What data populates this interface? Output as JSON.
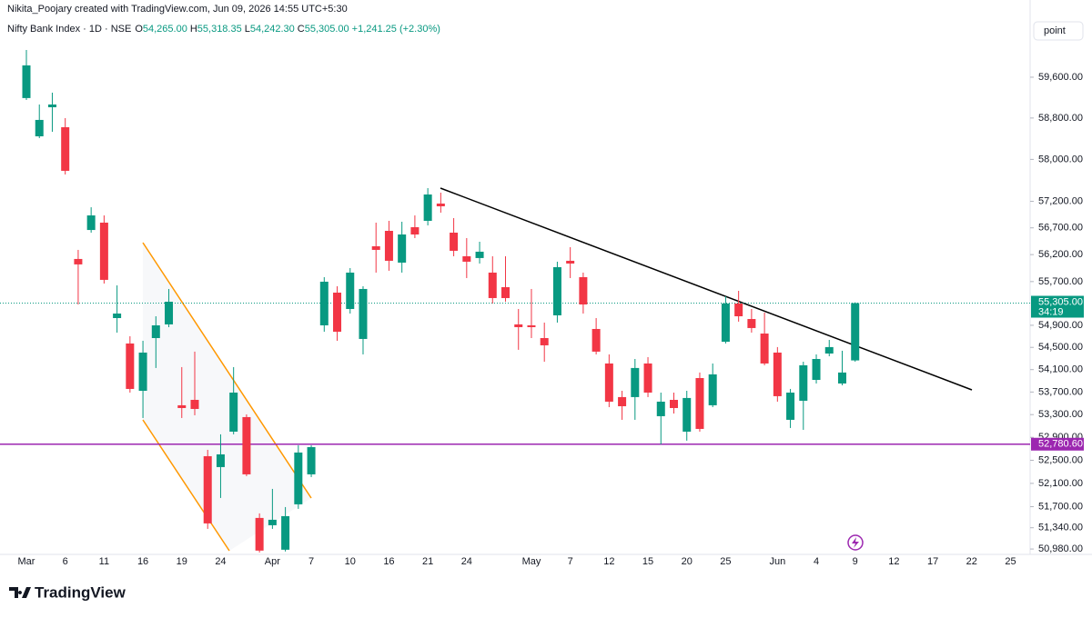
{
  "chart_data": {
    "type": "candlestick",
    "credit": "Nikita_Poojary created with TradingView.com, Jun 09, 2026 14:55 UTC+5:30",
    "symbol": "Nifty Bank Index · 1D · NSE",
    "legend_fields": [
      {
        "key": "O",
        "value": "54,265.00"
      },
      {
        "key": "H",
        "value": "55,318.35"
      },
      {
        "key": "L",
        "value": "54,242.30"
      },
      {
        "key": "C",
        "value": "55,305.00"
      }
    ],
    "change": "+1,241.25 (+2.30%)",
    "scale_button": "point",
    "logo": "TradingView",
    "up_color": "#089981",
    "down_color": "#f23645",
    "log_scale": true,
    "grid": false,
    "categories": [
      "Mar",
      null,
      null,
      "6",
      null,
      null,
      "11",
      null,
      null,
      "16",
      null,
      null,
      "19",
      null,
      null,
      "24",
      null,
      null,
      null,
      "Apr",
      null,
      null,
      "7",
      null,
      null,
      "10",
      null,
      null,
      "16",
      null,
      null,
      "21",
      null,
      null,
      "24",
      null,
      null,
      null,
      null,
      "May",
      null,
      null,
      "7",
      null,
      null,
      "12",
      null,
      null,
      "15",
      null,
      null,
      "20",
      null,
      null,
      "25",
      null,
      null,
      null,
      "Jun",
      null,
      null,
      "4",
      null,
      null,
      "9",
      null,
      null,
      "12",
      null,
      null,
      "17",
      null,
      null,
      "22",
      null,
      null,
      "25"
    ],
    "open": [
      59190,
      58445,
      59010,
      58621,
      56119,
      56660,
      56798,
      55031,
      54570,
      53722,
      54668,
      54916,
      53465,
      53561,
      52571,
      52382,
      53000,
      53256,
      51507,
      51383,
      50968,
      51740,
      52256,
      54899,
      55497,
      55197,
      54652,
      56355,
      56644,
      56051,
      56712,
      56832,
      57158,
      56610,
      56169,
      56136,
      55866,
      55597,
      54916,
      54899,
      54668,
      55081,
      56085,
      55782,
      54833,
      54210,
      53610,
      53610,
      54210,
      53272,
      53561,
      53000,
      53949,
      53465,
      54602,
      55297,
      55014,
      54750,
      54406,
      53208,
      53545,
      53916,
      54389,
      53852,
      54265,
      null,
      null,
      null,
      null,
      null,
      null,
      null,
      null,
      null,
      null,
      null,
      null
    ],
    "high": [
      60140,
      59064,
      59296,
      58798,
      56288,
      57088,
      56934,
      55630,
      54701,
      54619,
      55064,
      55564,
      54145,
      54423,
      52682,
      52953,
      54145,
      53304,
      51585,
      52005,
      51693,
      52762,
      52762,
      55782,
      55614,
      55950,
      55614,
      56798,
      56832,
      56815,
      56934,
      57451,
      57365,
      56883,
      56508,
      56440,
      56169,
      56169,
      55197,
      55564,
      54949,
      56068,
      56338,
      55866,
      55031,
      54373,
      53722,
      54291,
      54324,
      53690,
      53690,
      53722,
      54048,
      54210,
      55430,
      55530,
      55197,
      55131,
      54505,
      53755,
      54242,
      54373,
      54635,
      54439,
      55318.35,
      null,
      null,
      null,
      null,
      null,
      null,
      null,
      null,
      null,
      null,
      null,
      null
    ],
    "low": [
      59153,
      58410,
      58533,
      57711,
      55280,
      56610,
      55664,
      54767,
      53690,
      53240,
      54129,
      54866,
      53240,
      53288,
      51321,
      51849,
      52953,
      52225,
      50922,
      51321,
      50938,
      51662,
      52209,
      54783,
      54619,
      55114,
      54373,
      55866,
      55900,
      55866,
      56508,
      56746,
      56986,
      56169,
      55765,
      56034,
      55297,
      55330,
      54456,
      54668,
      54242,
      54949,
      55765,
      55114,
      54373,
      53432,
      53208,
      53208,
      53610,
      52778,
      53320,
      52842,
      53000,
      53432,
      54570,
      54966,
      54767,
      54178,
      53529,
      53064,
      53032,
      53852,
      54340,
      53820,
      54242.3,
      null,
      null,
      null,
      null,
      null,
      null,
      null,
      null,
      null,
      null,
      null,
      null
    ],
    "close": [
      59834,
      58763,
      59064,
      57781,
      56018,
      56934,
      55732,
      55114,
      53755,
      54406,
      54899,
      55330,
      53416,
      53400,
      51414,
      52603,
      53690,
      52256,
      50953,
      51476,
      51538,
      52635,
      52730,
      55698,
      54783,
      55866,
      55564,
      56288,
      56085,
      56576,
      56576,
      57330,
      57106,
      56271,
      56068,
      56254,
      55397,
      55397,
      54866,
      54866,
      54537,
      55967,
      56034,
      55280,
      54423,
      53529,
      53448,
      54129,
      53690,
      53529,
      53416,
      53594,
      53048,
      54015,
      55297,
      55064,
      54850,
      54210,
      53626,
      53690,
      54178,
      54291,
      54505,
      54048,
      55305,
      null,
      null,
      null,
      null,
      null,
      null,
      null,
      null,
      null,
      null,
      null,
      null
    ],
    "ylim": [
      50920,
      60740
    ],
    "yticks": [
      {
        "value": 59600,
        "label": "59,600.00"
      },
      {
        "value": 58800,
        "label": "58,800.00"
      },
      {
        "value": 58000,
        "label": "58,000.00"
      },
      {
        "value": 57200,
        "label": "57,200.00"
      },
      {
        "value": 56700,
        "label": "56,700.00"
      },
      {
        "value": 56200,
        "label": "56,200.00"
      },
      {
        "value": 55700,
        "label": "55,700.00"
      },
      {
        "value": 54900,
        "label": "54,900.00"
      },
      {
        "value": 54500,
        "label": "54,500.00"
      },
      {
        "value": 54100,
        "label": "54,100.00"
      },
      {
        "value": 53700,
        "label": "53,700.00"
      },
      {
        "value": 53300,
        "label": "53,300.00"
      },
      {
        "value": 52900,
        "label": "52,900.00"
      },
      {
        "value": 52500,
        "label": "52,500.00"
      },
      {
        "value": 52100,
        "label": "52,100.00"
      },
      {
        "value": 51700,
        "label": "51,700.00"
      },
      {
        "value": 51340,
        "label": "51,340.00"
      },
      {
        "value": 50980,
        "label": "50,980.00"
      }
    ],
    "last_price": {
      "value": 55305,
      "label": "55,305.00",
      "countdown": "34:19"
    },
    "level": {
      "value": 52780.6,
      "label": "52,780.60",
      "color": "#9c27b0"
    }
  }
}
